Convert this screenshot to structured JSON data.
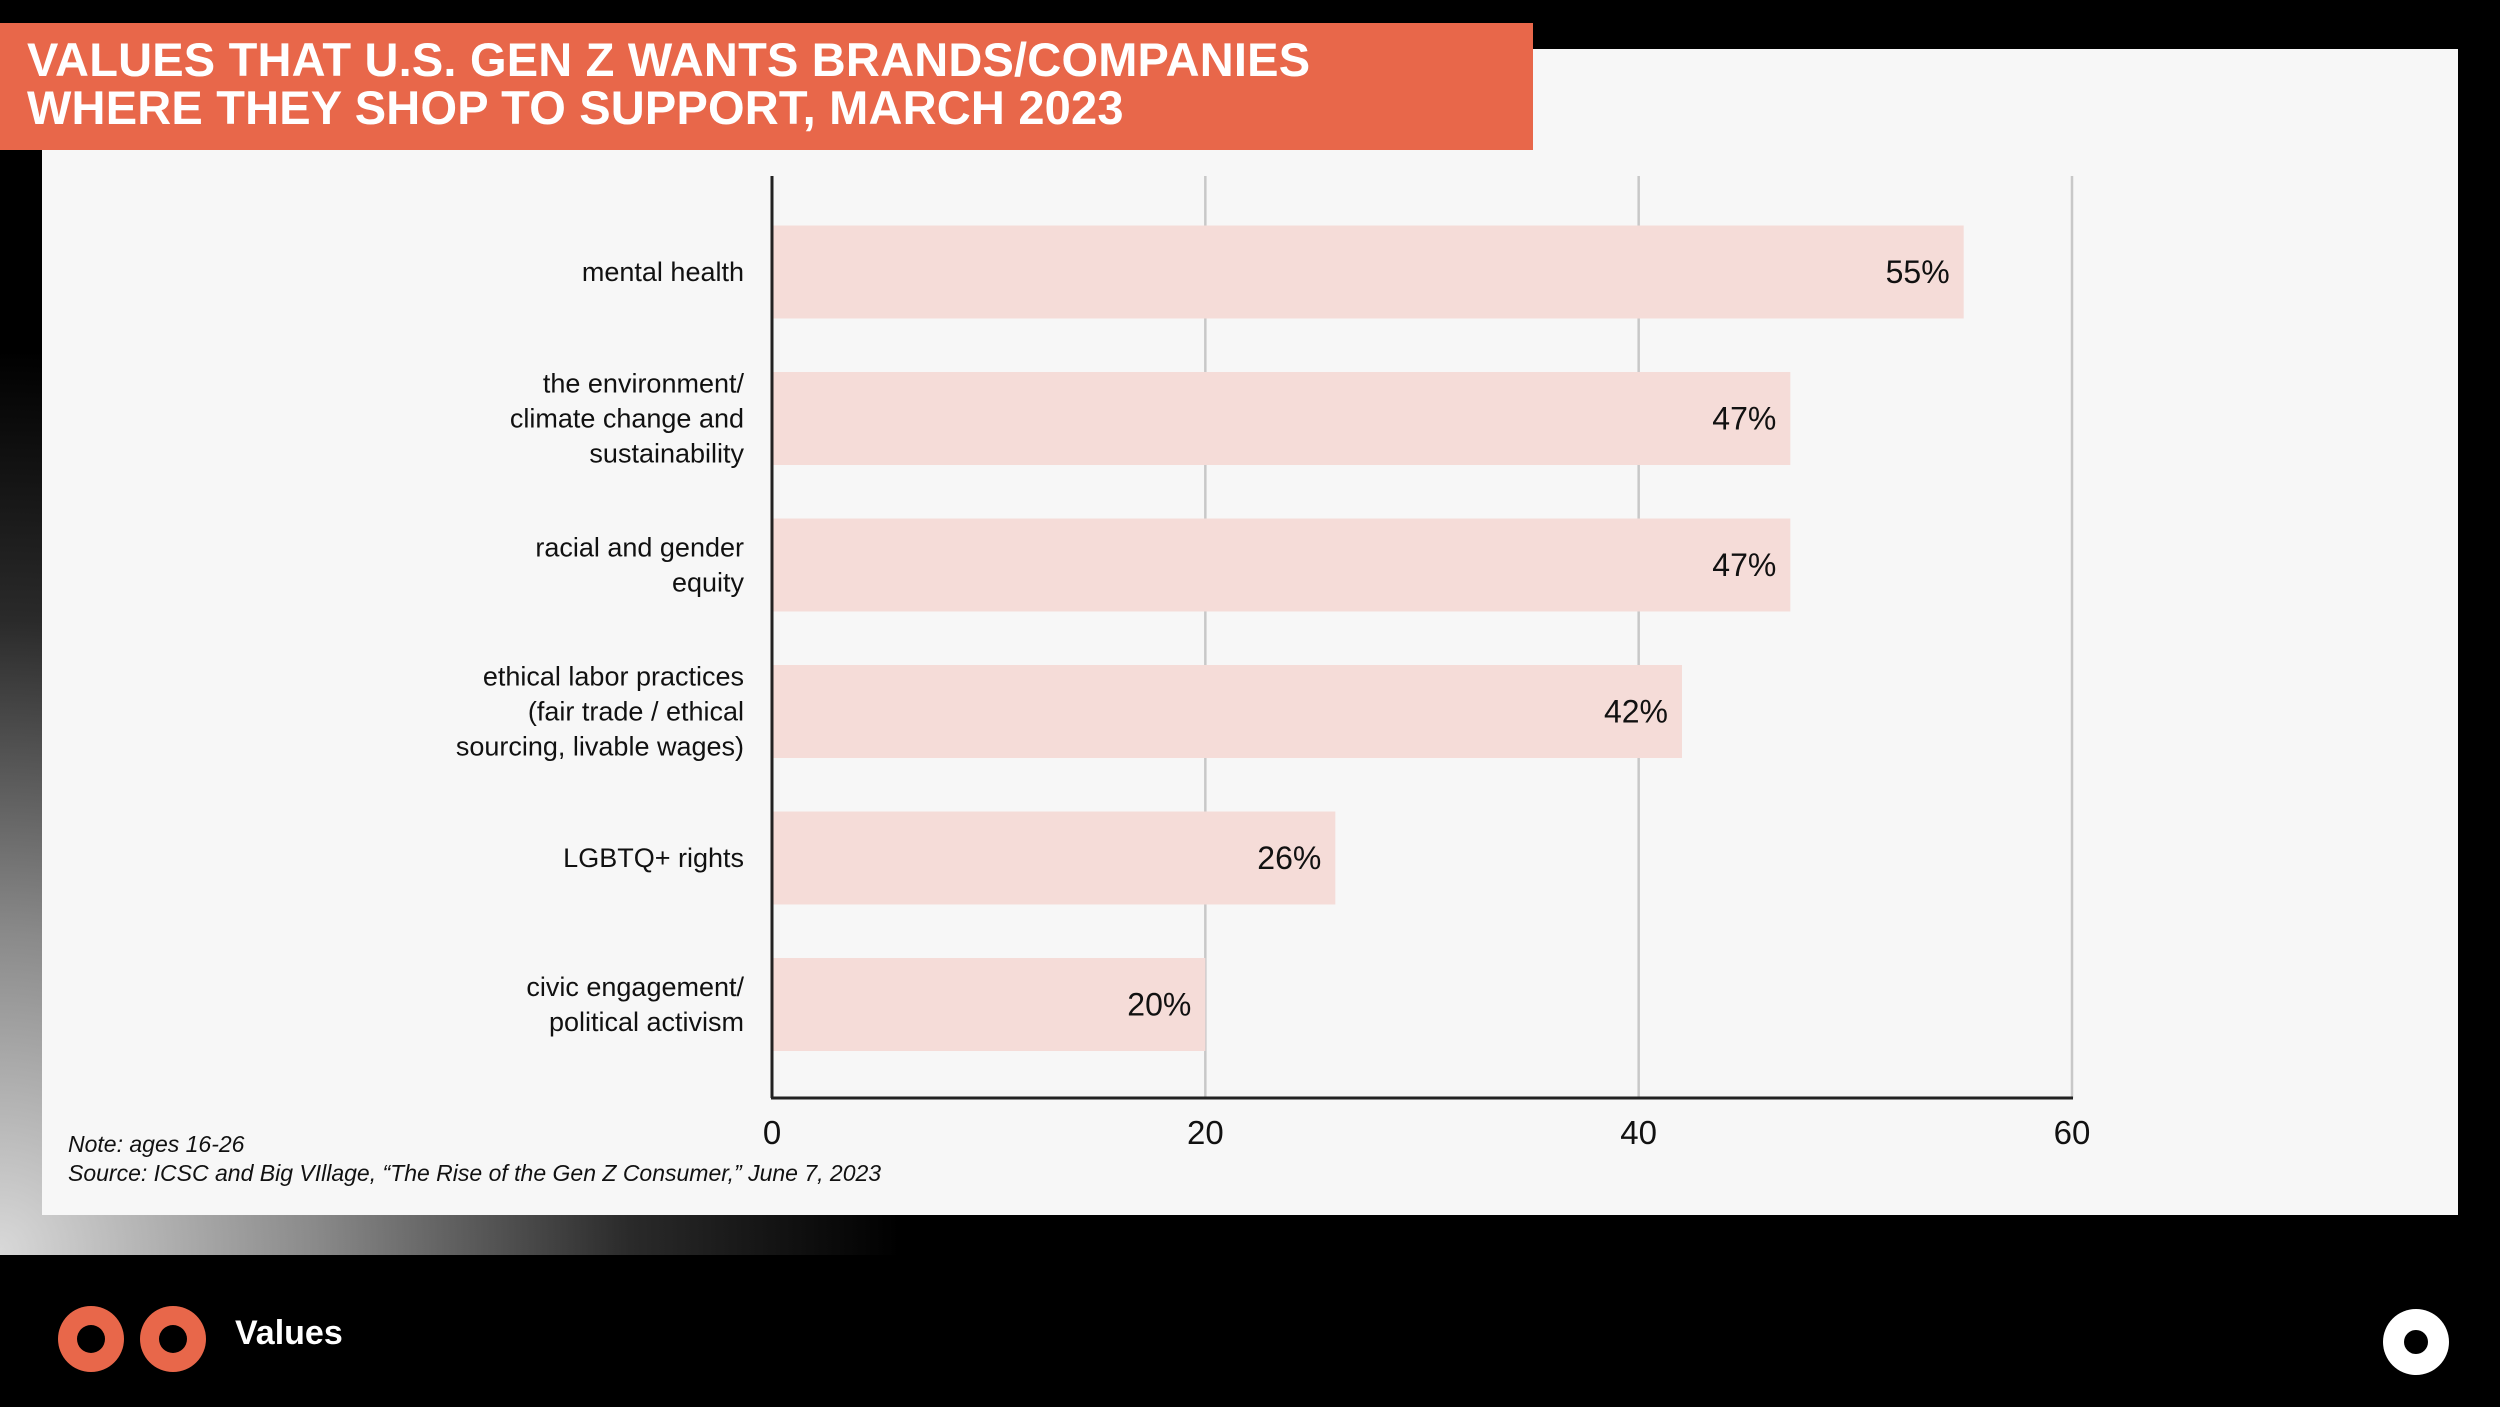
{
  "title": "VALUES THAT U.S. GEN Z WANTS BRANDS/COMPANIES\nWHERE THEY SHOP TO SUPPORT, MARCH 2023",
  "note": "Note: ages 16-26",
  "source": "Source: ICSC and Big VIllage, “The Rise of the Gen Z Consumer,” June 7, 2023",
  "footer": {
    "section_label": "Values"
  },
  "colors": {
    "accent": "#e8674a",
    "bar": "#f5dcd8",
    "panel": "#f7f7f7",
    "grid": "#c8c8c8",
    "axis": "#222222"
  },
  "chart_data": {
    "type": "bar",
    "orientation": "horizontal",
    "title": "VALUES THAT U.S. GEN Z WANTS BRANDS/COMPANIES WHERE THEY SHOP TO SUPPORT, MARCH 2023",
    "categories": [
      [
        "mental health"
      ],
      [
        "the environment/",
        "climate change and",
        "sustainability"
      ],
      [
        "racial and gender",
        "equity"
      ],
      [
        "ethical labor practices",
        "(fair trade / ethical",
        "sourcing, livable wages)"
      ],
      [
        "LGBTQ+ rights"
      ],
      [
        "civic engagement/",
        "political activism"
      ]
    ],
    "values": [
      55,
      47,
      47,
      42,
      26,
      20
    ],
    "value_labels": [
      "55%",
      "47%",
      "47%",
      "42%",
      "26%",
      "20%"
    ],
    "xlim": [
      0,
      60
    ],
    "xticks": [
      0,
      20,
      40,
      60
    ],
    "xtick_labels": [
      "0",
      "20",
      "40",
      "60"
    ],
    "grid": true,
    "legend": "none"
  }
}
